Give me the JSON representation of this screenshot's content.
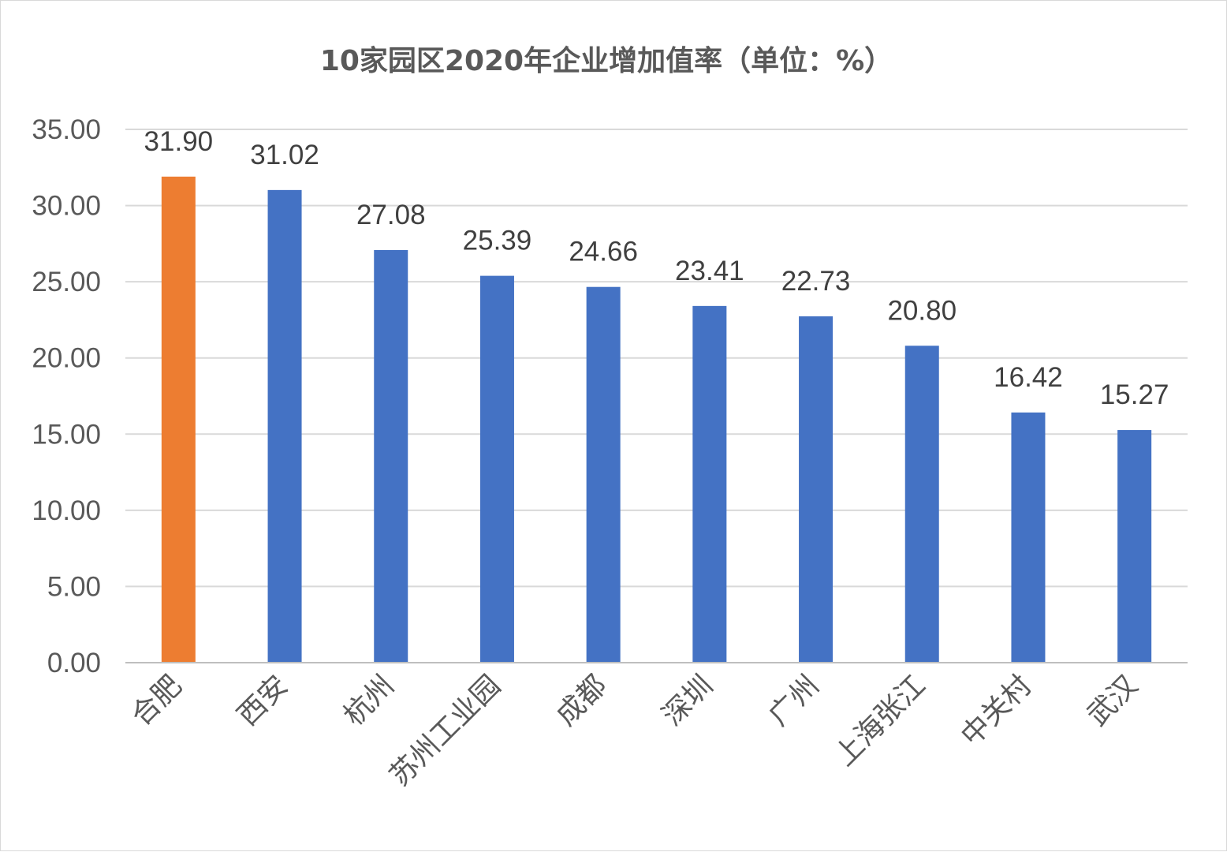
{
  "chart_data": {
    "type": "bar",
    "title": "10家园区2020年企业增加值率（单位：%）",
    "categories": [
      "合肥",
      "西安",
      "杭州",
      "苏州工业园",
      "成都",
      "深圳",
      "广州",
      "上海张江",
      "中关村",
      "武汉"
    ],
    "values": [
      31.9,
      31.02,
      27.08,
      25.39,
      24.66,
      23.41,
      22.73,
      20.8,
      16.42,
      15.27
    ],
    "value_labels": [
      "31.90",
      "31.02",
      "27.08",
      "25.39",
      "24.66",
      "23.41",
      "22.73",
      "20.80",
      "16.42",
      "15.27"
    ],
    "ylim": [
      0,
      35
    ],
    "yticks": [
      "0.00",
      "5.00",
      "10.00",
      "15.00",
      "20.00",
      "25.00",
      "30.00",
      "35.00"
    ],
    "ytick_values": [
      0,
      5,
      10,
      15,
      20,
      25,
      30,
      35
    ],
    "grid": true,
    "legend": "none",
    "colors": {
      "default": "#4472C4",
      "highlight": "#ED7D31",
      "highlight_index": 0
    }
  }
}
